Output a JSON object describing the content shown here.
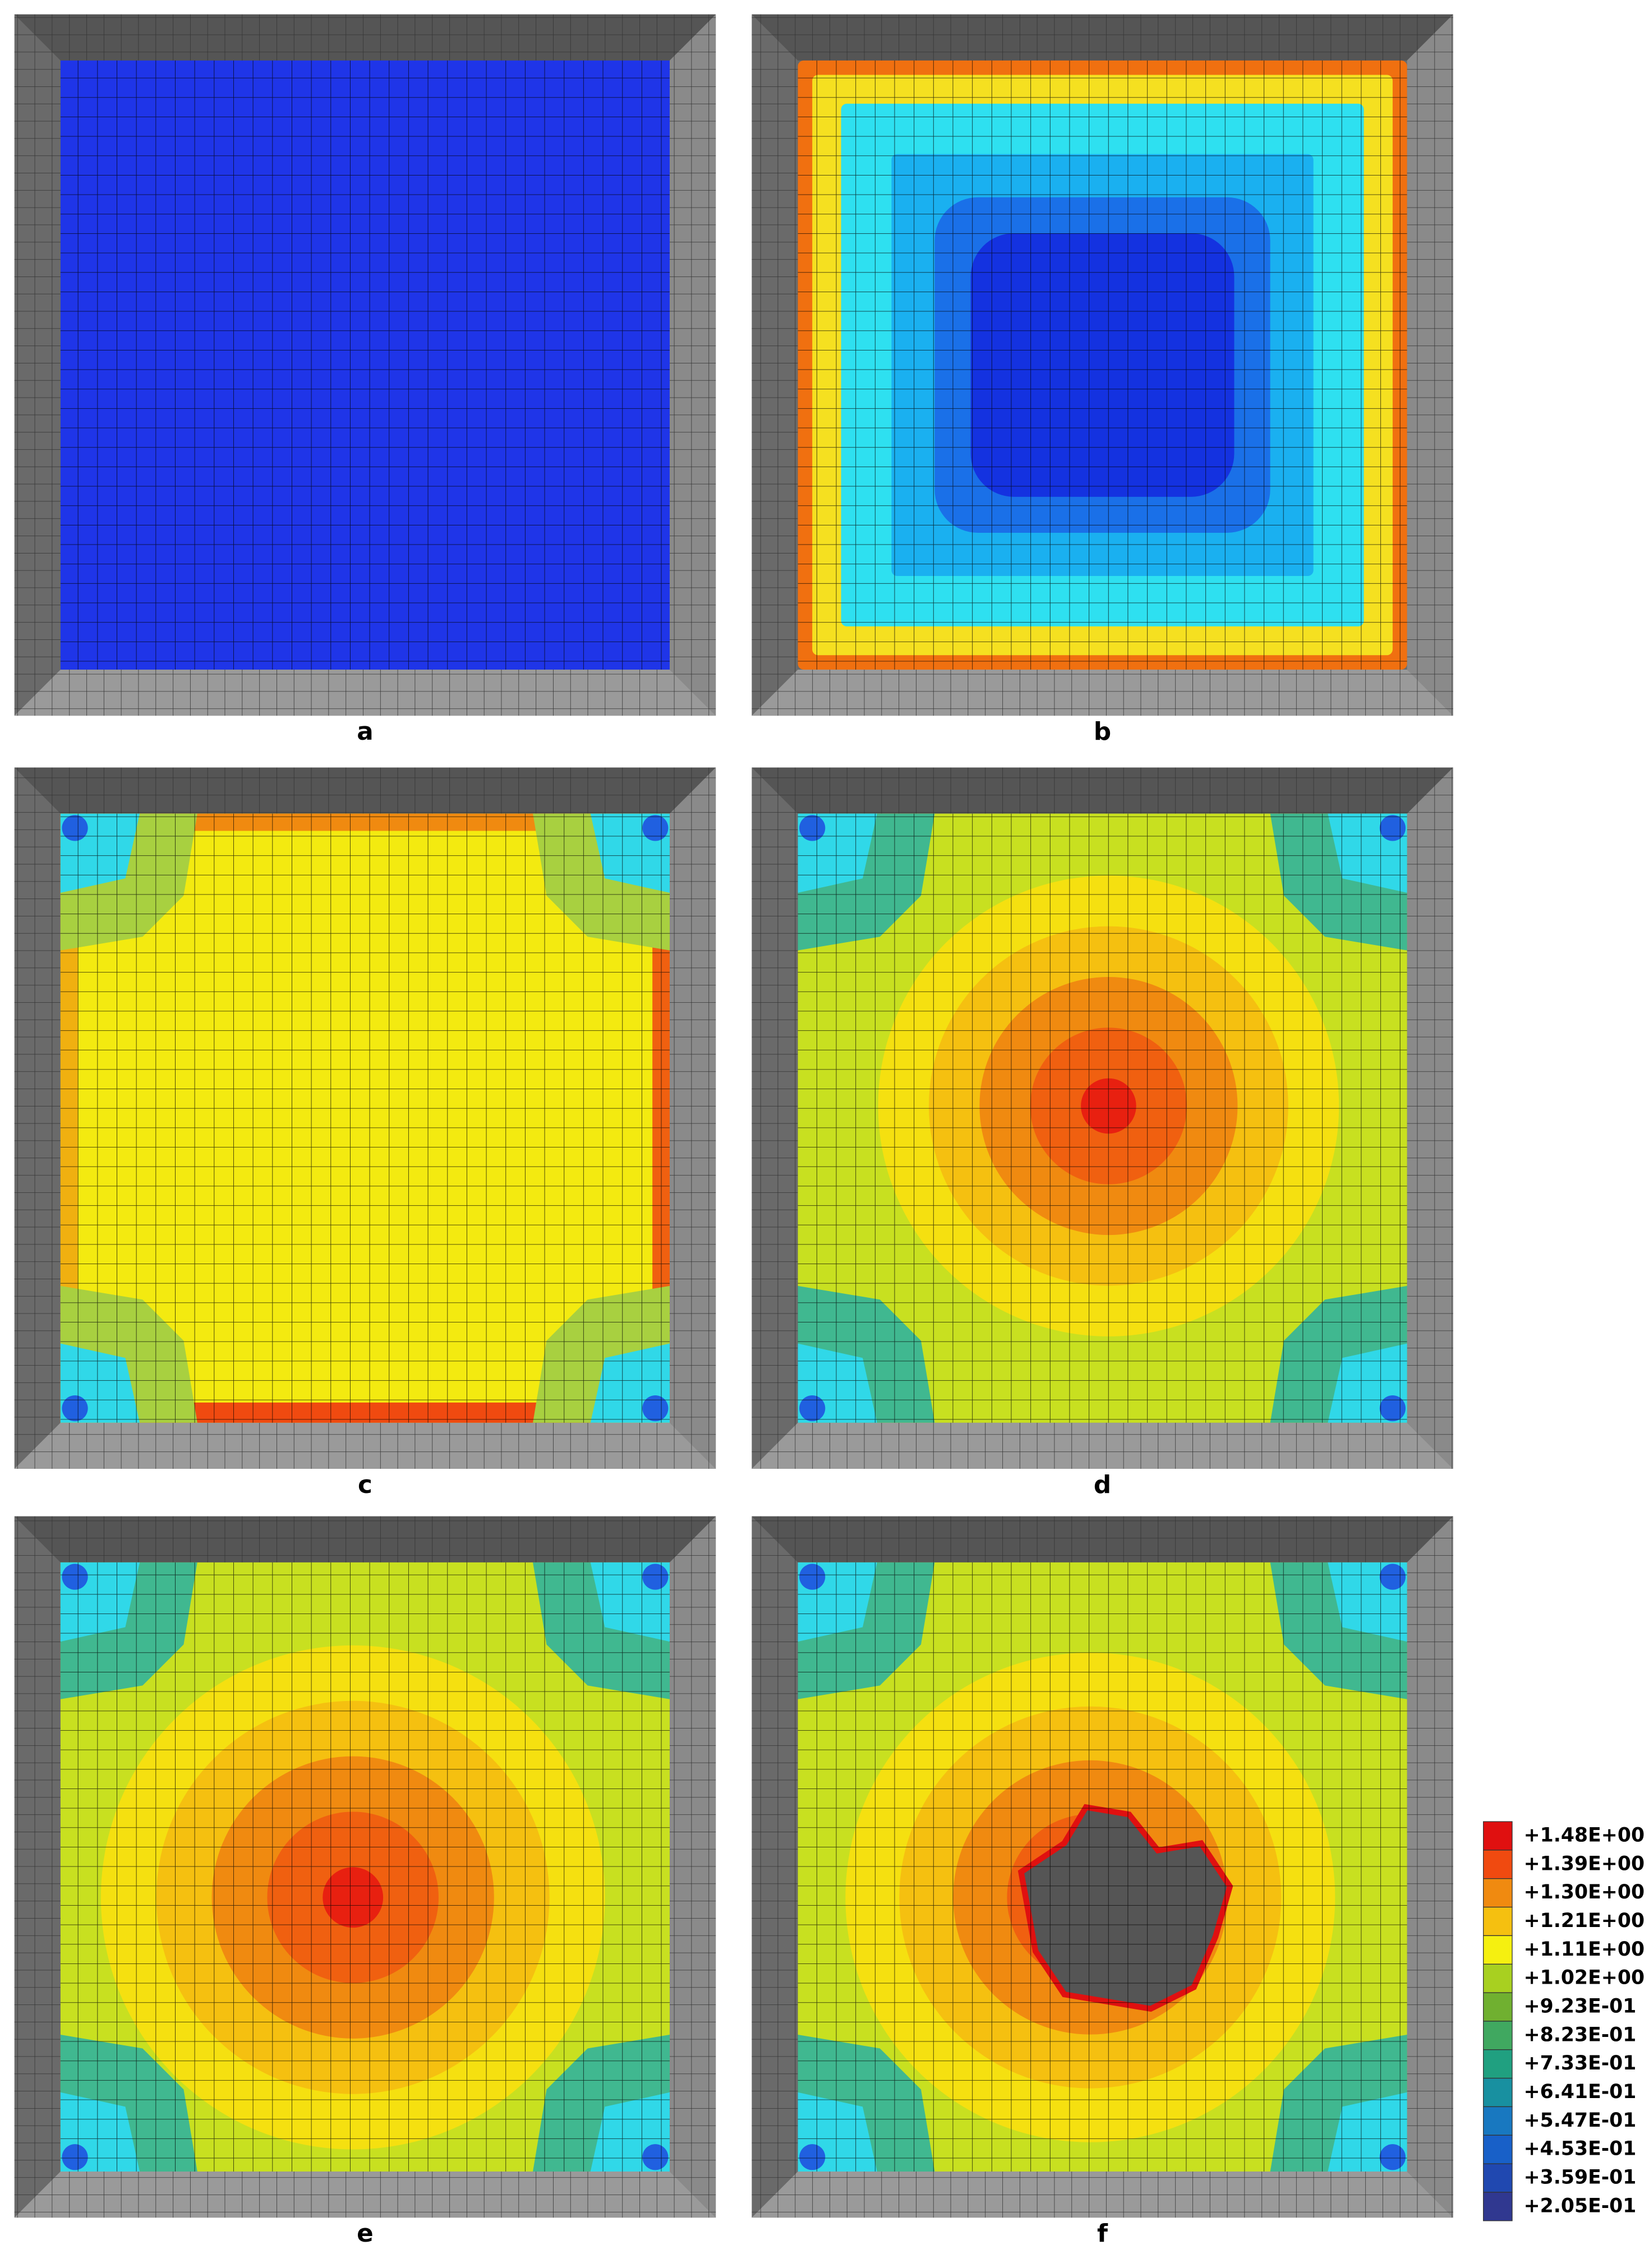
{
  "panels": [
    {
      "label": "a"
    },
    {
      "label": "b"
    },
    {
      "label": "c"
    },
    {
      "label": "d"
    },
    {
      "label": "e"
    },
    {
      "label": "f"
    }
  ],
  "legend": {
    "items": [
      {
        "label": "+1.48E+00",
        "color": "#e01010"
      },
      {
        "label": "+1.39E+00",
        "color": "#f04a10"
      },
      {
        "label": "+1.30E+00",
        "color": "#f08a10"
      },
      {
        "label": "+1.21E+00",
        "color": "#f5c010"
      },
      {
        "label": "+1.11E+00",
        "color": "#f5f010"
      },
      {
        "label": "+1.02E+00",
        "color": "#a8d020"
      },
      {
        "label": "+9.23E-01",
        "color": "#70b030"
      },
      {
        "label": "+8.23E-01",
        "color": "#40a860"
      },
      {
        "label": "+7.33E-01",
        "color": "#20a080"
      },
      {
        "label": "+6.41E-01",
        "color": "#1890a0"
      },
      {
        "label": "+5.47E-01",
        "color": "#1878c0"
      },
      {
        "label": "+4.53E-01",
        "color": "#1860c8"
      },
      {
        "label": "+3.59E-01",
        "color": "#2048b0"
      },
      {
        "label": "+2.05E-01",
        "color": "#303890"
      }
    ]
  }
}
